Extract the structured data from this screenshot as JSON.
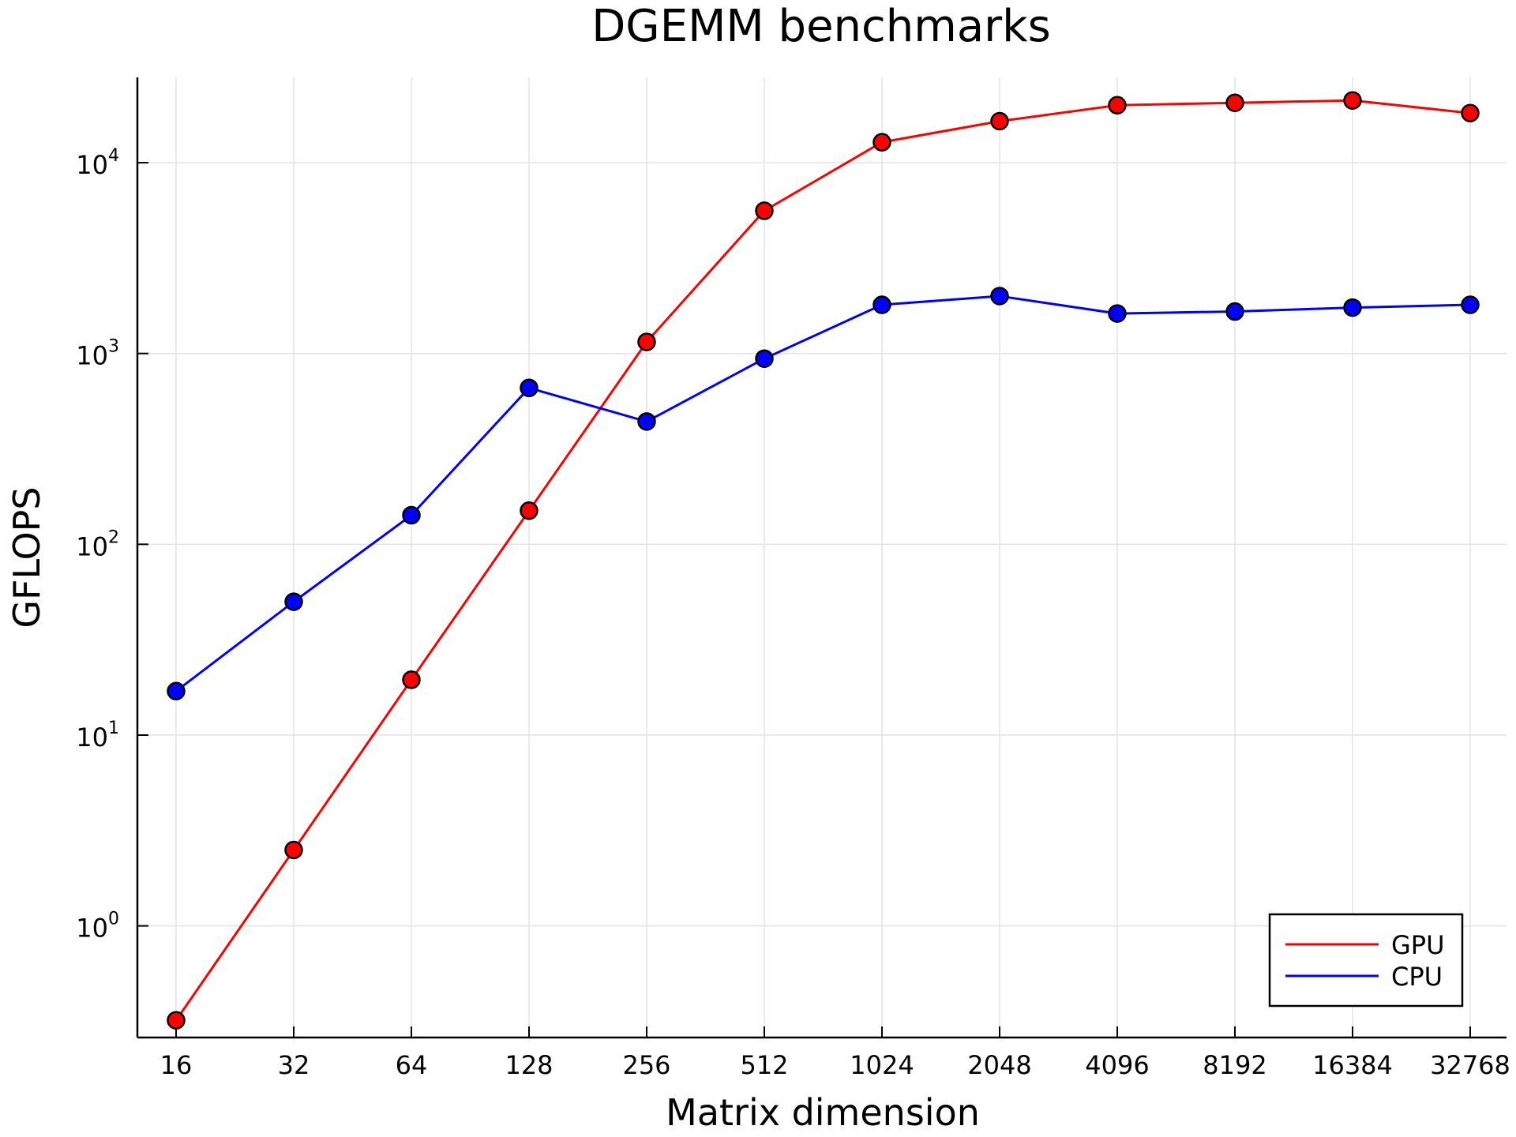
{
  "chart_data": {
    "type": "line",
    "title": "DGEMM benchmarks",
    "xlabel": "Matrix dimension",
    "ylabel": "GFLOPS",
    "x_scale": "log2",
    "y_scale": "log10",
    "categories": [
      "16",
      "32",
      "64",
      "128",
      "256",
      "512",
      "1024",
      "2048",
      "4096",
      "8192",
      "16384",
      "32768"
    ],
    "x": [
      16,
      32,
      64,
      128,
      256,
      512,
      1024,
      2048,
      4096,
      8192,
      16384,
      32768
    ],
    "ylim": [
      0.26,
      28000
    ],
    "y_ticks": [
      {
        "value": 1,
        "base": "10",
        "exp": "0"
      },
      {
        "value": 10,
        "base": "10",
        "exp": "1"
      },
      {
        "value": 100,
        "base": "10",
        "exp": "2"
      },
      {
        "value": 1000,
        "base": "10",
        "exp": "3"
      },
      {
        "value": 10000,
        "base": "10",
        "exp": "4"
      }
    ],
    "grid": true,
    "legend_position": "bottom-right",
    "series": [
      {
        "name": "GPU",
        "color": "#ff0000",
        "values": [
          0.32,
          2.5,
          19.5,
          150,
          1150,
          5600,
          12800,
          16500,
          20000,
          20600,
          21200,
          18200
        ]
      },
      {
        "name": "CPU",
        "color": "#0000ff",
        "values": [
          17,
          50,
          142,
          660,
          440,
          940,
          1800,
          2000,
          1620,
          1660,
          1740,
          1800
        ]
      }
    ]
  }
}
